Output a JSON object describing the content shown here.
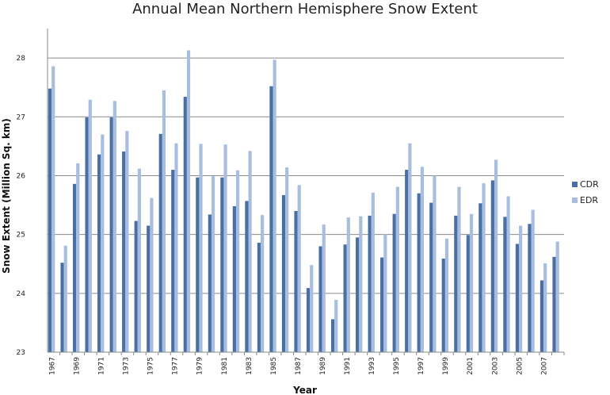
{
  "chart_data": {
    "type": "bar",
    "title": "Annual Mean Northern Hemisphere Snow Extent",
    "xlabel": "Year",
    "ylabel": "Snow Extent (Million Sq. km)",
    "ylim": [
      23,
      28.5
    ],
    "yticks": [
      23,
      24,
      25,
      26,
      27,
      28
    ],
    "grid": true,
    "legend_position": "right",
    "categories": [
      "1967",
      "1968",
      "1969",
      "1970",
      "1971",
      "1972",
      "1973",
      "1974",
      "1975",
      "1976",
      "1977",
      "1978",
      "1979",
      "1980",
      "1981",
      "1982",
      "1983",
      "1984",
      "1985",
      "1986",
      "1987",
      "1988",
      "1989",
      "1990",
      "1991",
      "1992",
      "1993",
      "1994",
      "1995",
      "1996",
      "1997",
      "1998",
      "1999",
      "2000",
      "2001",
      "2002",
      "2003",
      "2004",
      "2005",
      "2006",
      "2007",
      "2008"
    ],
    "xtick_labels": [
      "1967",
      "",
      "1969",
      "",
      "1971",
      "",
      "1973",
      "",
      "1975",
      "",
      "1977",
      "",
      "1979",
      "",
      "1981",
      "",
      "1983",
      "",
      "1985",
      "",
      "1987",
      "",
      "1989",
      "",
      "1991",
      "",
      "1993",
      "",
      "1995",
      "",
      "1997",
      "",
      "1999",
      "",
      "2001",
      "",
      "2003",
      "",
      "2005",
      "",
      "2007",
      ""
    ],
    "series": [
      {
        "name": "CDR",
        "color": "#4a6fa5",
        "values": [
          27.48,
          24.52,
          25.86,
          26.99,
          26.36,
          26.99,
          26.41,
          25.23,
          25.15,
          26.71,
          26.1,
          27.34,
          25.97,
          25.34,
          25.97,
          25.48,
          25.57,
          24.86,
          27.52,
          25.67,
          25.4,
          24.09,
          24.8,
          23.56,
          24.83,
          24.95,
          25.32,
          24.61,
          25.35,
          26.1,
          25.7,
          25.54,
          24.59,
          25.32,
          24.99,
          25.53,
          25.92,
          25.3,
          24.84,
          25.18,
          24.22,
          24.62
        ]
      },
      {
        "name": "EDR",
        "color": "#a8bedf",
        "values": [
          27.86,
          24.81,
          26.21,
          27.29,
          26.7,
          27.27,
          26.76,
          26.12,
          25.62,
          27.45,
          26.55,
          28.13,
          26.54,
          25.99,
          26.53,
          26.09,
          26.42,
          25.33,
          27.97,
          26.14,
          25.84,
          24.48,
          25.17,
          23.89,
          25.29,
          25.31,
          25.71,
          25.0,
          25.81,
          26.55,
          26.15,
          26.0,
          24.93,
          25.81,
          25.35,
          25.87,
          26.27,
          25.65,
          25.15,
          25.42,
          24.51,
          24.88
        ]
      }
    ]
  }
}
